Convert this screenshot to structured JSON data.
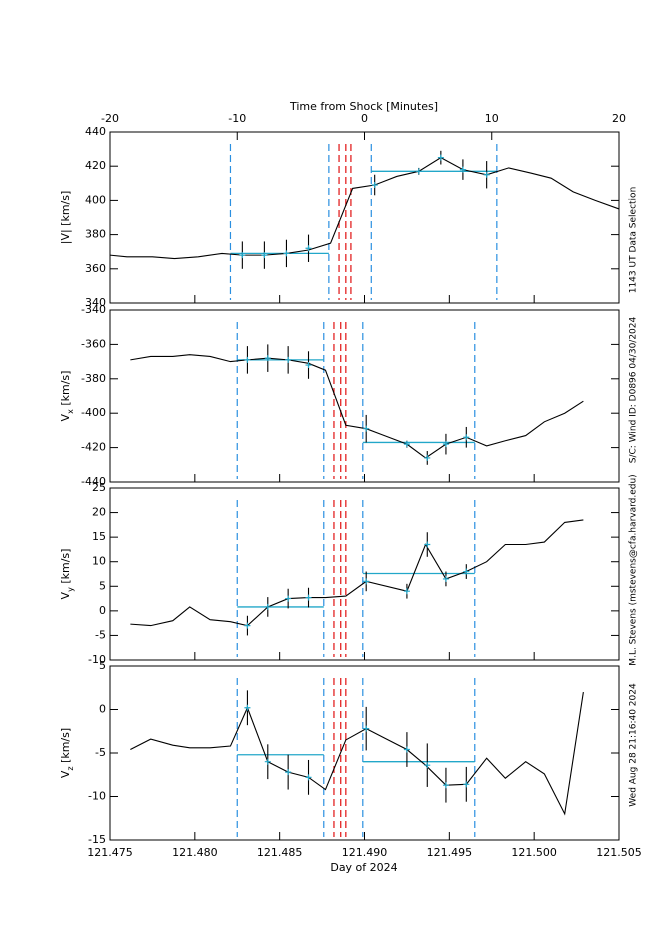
{
  "chart_data": [
    {
      "type": "line",
      "ylabel": {
        "main": "|V| [km/s]"
      },
      "ylim": [
        340,
        440
      ],
      "yticks": [
        340,
        360,
        380,
        400,
        420,
        440
      ],
      "xlim": [
        121.475,
        121.505
      ],
      "xticks": [
        121.475,
        121.48,
        121.485,
        121.49,
        121.495,
        121.5,
        121.505
      ],
      "x2label": "Time from Shock [Minutes]",
      "x2lim": [
        -20,
        20
      ],
      "x2ticks": [
        -20,
        -10,
        0,
        10,
        20
      ],
      "color": "#000000",
      "x": [
        121.475,
        121.476,
        121.4775,
        121.4788,
        121.4802,
        121.4816,
        121.4828,
        121.4841,
        121.4854,
        121.4867,
        121.488,
        121.4893,
        121.4906,
        121.4919,
        121.4932,
        121.4945,
        121.4958,
        121.4972,
        121.4985,
        121.4998,
        121.501,
        121.5023,
        121.5036,
        121.505
      ],
      "values": [
        368,
        367,
        367,
        366,
        367,
        369,
        368,
        368,
        369,
        371,
        375,
        407,
        409,
        414,
        417,
        425,
        418,
        415,
        419,
        416,
        413,
        405,
        400,
        395
      ],
      "points": {
        "color": "#22a7c9",
        "x": [
          121.4828,
          121.4841,
          121.4854,
          121.4867,
          121.4906,
          121.4932,
          121.4945,
          121.4958,
          121.4972
        ],
        "values": [
          368,
          368,
          369,
          372,
          409,
          417,
          425,
          418,
          415
        ],
        "errors": [
          8,
          8,
          8,
          8,
          6,
          2,
          4,
          6,
          8
        ]
      },
      "means": {
        "color": "#22a7c9",
        "starts": [
          121.4821,
          121.4904
        ],
        "ends": [
          121.4879,
          121.4978
        ],
        "values": [
          369,
          417
        ]
      },
      "markers": {
        "blue": [
          121.4821,
          121.4879,
          121.4904,
          121.4978
        ],
        "red": [
          121.4885,
          121.4889,
          121.4892
        ]
      }
    },
    {
      "type": "line",
      "ylabel": {
        "main": "V",
        "sub": "x",
        "unit": " [km/s]"
      },
      "ylim": [
        -440,
        -340
      ],
      "yticks": [
        -440,
        -420,
        -400,
        -380,
        -360,
        -340
      ],
      "xlim": [
        121.475,
        121.505
      ],
      "xticks": [
        121.475,
        121.48,
        121.485,
        121.49,
        121.495,
        121.5,
        121.505
      ],
      "color": "#000000",
      "x": [
        121.4762,
        121.4774,
        121.4787,
        121.4797,
        121.4809,
        121.4821,
        121.4831,
        121.4843,
        121.4855,
        121.4867,
        121.4877,
        121.4889,
        121.4901,
        121.4925,
        121.4936,
        121.4948,
        121.496,
        121.4972,
        121.4983,
        121.4995,
        121.5006,
        121.5018,
        121.5029
      ],
      "values": [
        -369,
        -367,
        -367,
        -366,
        -367,
        -370,
        -369,
        -368,
        -369,
        -371,
        -375,
        -407,
        -409,
        -418,
        -426,
        -418,
        -414,
        -419,
        -416,
        -413,
        -405,
        -400,
        -393
      ],
      "points": {
        "color": "#22a7c9",
        "x": [
          121.4831,
          121.4843,
          121.4855,
          121.4867,
          121.4901,
          121.4925,
          121.4937,
          121.4948,
          121.496
        ],
        "values": [
          -369,
          -368,
          -369,
          -372,
          -409,
          -418,
          -426,
          -418,
          -414
        ],
        "errors": [
          8,
          8,
          8,
          8,
          8,
          2,
          4,
          6,
          6
        ]
      },
      "means": {
        "color": "#22a7c9",
        "starts": [
          121.4825,
          121.4899
        ],
        "ends": [
          121.4876,
          121.4965
        ],
        "values": [
          -369,
          -417
        ]
      },
      "markers": {
        "blue": [
          121.4825,
          121.4876,
          121.4899,
          121.4965
        ],
        "red": [
          121.4882,
          121.4886,
          121.4889
        ]
      }
    },
    {
      "type": "line",
      "ylabel": {
        "main": "V",
        "sub": "y",
        "unit": " [km/s]"
      },
      "ylim": [
        -10,
        25
      ],
      "yticks": [
        -10,
        -5,
        0,
        5,
        10,
        15,
        20,
        25
      ],
      "xlim": [
        121.475,
        121.505
      ],
      "xticks": [
        121.475,
        121.48,
        121.485,
        121.49,
        121.495,
        121.5,
        121.505
      ],
      "color": "#000000",
      "x": [
        121.4762,
        121.4774,
        121.4787,
        121.4797,
        121.4809,
        121.4821,
        121.4831,
        121.4843,
        121.4855,
        121.4867,
        121.4877,
        121.4889,
        121.4901,
        121.4925,
        121.4936,
        121.4948,
        121.496,
        121.4972,
        121.4983,
        121.4995,
        121.5006,
        121.5018,
        121.5029
      ],
      "values": [
        -2.7,
        -3,
        -2,
        0.8,
        -1.8,
        -2.2,
        -3,
        0.8,
        2.5,
        2.7,
        2.7,
        3,
        6,
        4,
        13.5,
        6.5,
        8,
        10,
        13.5,
        13.5,
        14,
        18,
        18.5
      ],
      "points": {
        "color": "#22a7c9",
        "x": [
          121.4831,
          121.4843,
          121.4855,
          121.4867,
          121.4901,
          121.4925,
          121.4937,
          121.4948,
          121.496
        ],
        "values": [
          -3,
          0.8,
          2.5,
          2.7,
          6,
          4,
          13.5,
          6.5,
          8
        ],
        "errors": [
          2,
          2,
          2,
          2,
          2,
          1.5,
          2.5,
          1.5,
          1.5
        ]
      },
      "means": {
        "color": "#22a7c9",
        "starts": [
          121.4825,
          121.4899
        ],
        "ends": [
          121.4876,
          121.4965
        ],
        "values": [
          0.8,
          7.6
        ]
      },
      "markers": {
        "blue": [
          121.4825,
          121.4876,
          121.4899,
          121.4965
        ],
        "red": [
          121.4882,
          121.4886,
          121.4889
        ]
      }
    },
    {
      "type": "line",
      "ylabel": {
        "main": "V",
        "sub": "z",
        "unit": " [km/s]"
      },
      "ylim": [
        -15,
        5
      ],
      "yticks": [
        -15,
        -10,
        -5,
        0,
        5
      ],
      "xlabel": "Day of 2024",
      "xlim": [
        121.475,
        121.505
      ],
      "xticks": [
        121.475,
        {
          "value": 121.48,
          "label": "121.480"
        },
        121.485,
        {
          "value": 121.49,
          "label": "121.490"
        },
        121.495,
        {
          "value": 121.5,
          "label": "121.500"
        },
        121.505
      ],
      "color": "#000000",
      "x": [
        121.4762,
        121.4774,
        121.4787,
        121.4797,
        121.4809,
        121.4821,
        121.4831,
        121.4843,
        121.4855,
        121.4867,
        121.4877,
        121.4889,
        121.4901,
        121.4925,
        121.4936,
        121.4948,
        121.496,
        121.4972,
        121.4983,
        121.4995,
        121.5006,
        121.5018,
        121.5029
      ],
      "values": [
        -4.6,
        -3.4,
        -4.1,
        -4.4,
        -4.4,
        -4.2,
        0.2,
        -6,
        -7.2,
        -7.8,
        -9.2,
        -3.5,
        -2.2,
        -4.6,
        -6.4,
        -8.7,
        -8.6,
        -5.6,
        -7.9,
        -6,
        -7.4,
        -12,
        2
      ],
      "points": {
        "color": "#22a7c9",
        "x": [
          121.4831,
          121.4843,
          121.4855,
          121.4867,
          121.4901,
          121.4925,
          121.4937,
          121.4948,
          121.496
        ],
        "values": [
          0.2,
          -6,
          -7.2,
          -7.8,
          -2.2,
          -4.6,
          -6.4,
          -8.7,
          -8.6
        ],
        "errors": [
          2,
          2,
          2,
          2,
          2.5,
          2,
          2.5,
          2,
          2
        ]
      },
      "means": {
        "color": "#22a7c9",
        "starts": [
          121.4825,
          121.4899
        ],
        "ends": [
          121.4876,
          121.4965
        ],
        "values": [
          -5.2,
          -6
        ]
      },
      "markers": {
        "blue": [
          121.4825,
          121.4876,
          121.4899,
          121.4965
        ],
        "red": [
          121.4882,
          121.4886,
          121.4889
        ]
      }
    }
  ],
  "marker_colors": {
    "blue": "#2a8fe0",
    "red": "#e01010"
  },
  "notes": [
    "1143 UT Data Selection",
    "S/C: Wind ID: D0896 04/30/2024",
    "M.L. Stevens (mstevens@cfa.harvard.edu)",
    "Wed Aug 28 21:16:40 2024"
  ]
}
